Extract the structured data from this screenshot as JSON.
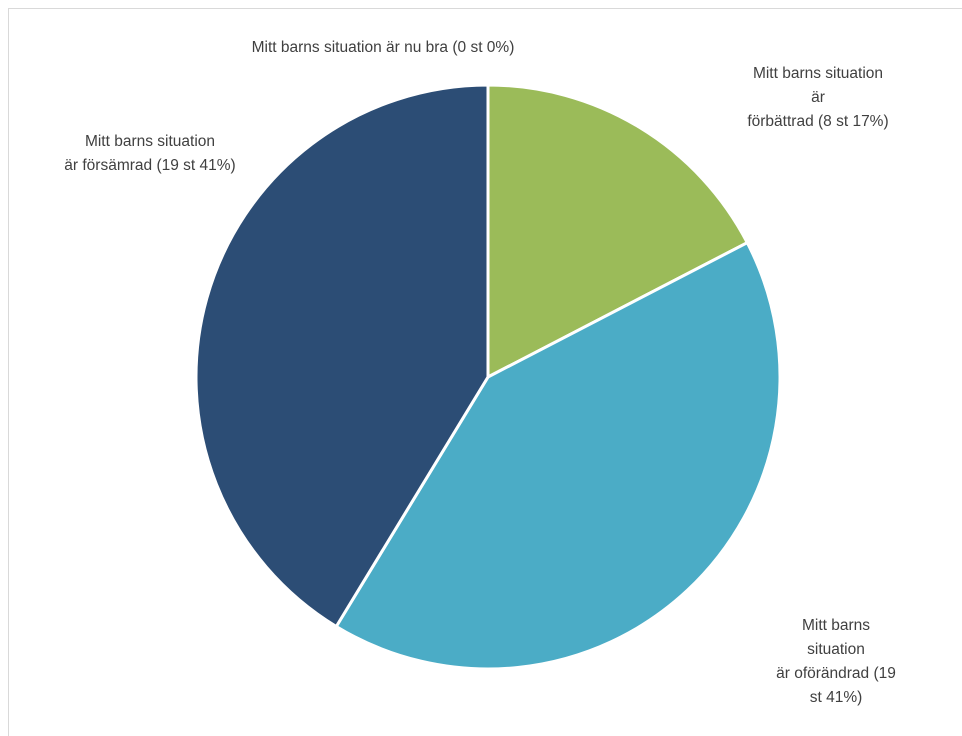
{
  "chart_data": {
    "type": "pie",
    "categories": [
      "Mitt barns situation är nu bra (0 st 0%)",
      "Mitt barns situation är\nförbättrad (8 st 17%)",
      "Mitt barns situation\när oförändrad (19 st 41%)",
      "Mitt barns situation\när försämrad (19 st 41%)"
    ],
    "values": [
      0,
      8,
      19,
      19
    ],
    "colors": [
      "#f79646",
      "#9bbb59",
      "#4bacc6",
      "#2c4d75"
    ]
  }
}
